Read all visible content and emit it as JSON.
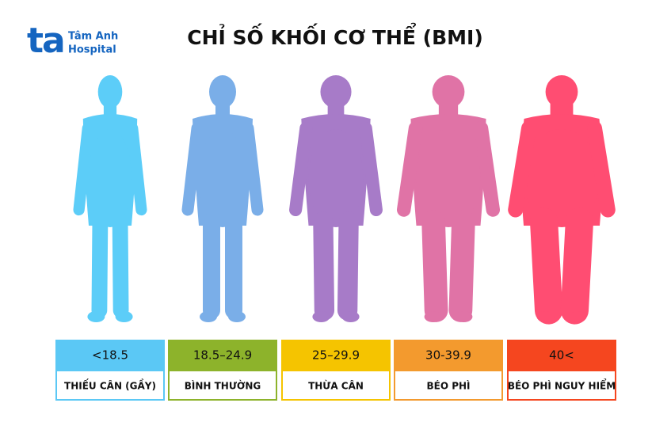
{
  "logo": {
    "mark": "ta",
    "line1": "Tâm Anh",
    "line2": "Hospital"
  },
  "title": "CHỈ SỐ KHỐI CƠ THỂ (BMI)",
  "categories": [
    {
      "range": "<18.5",
      "name": "THIẾU CÂN (GẦY)",
      "box_color": "#5bc8f5",
      "figure_color": "#5ccdf8"
    },
    {
      "range": "18.5–24.9",
      "name": "BÌNH THƯỜNG",
      "box_color": "#8db32b",
      "figure_color": "#7aaee8"
    },
    {
      "range": "25–29.9",
      "name": "THỪA CÂN",
      "box_color": "#f5c400",
      "figure_color": "#a77bc8"
    },
    {
      "range": "30-39.9",
      "name": "BÉO PHÌ",
      "box_color": "#f39a2e",
      "figure_color": "#e073a6"
    },
    {
      "range": "40<",
      "name": "BÉO PHÌ NGUY HIỂM",
      "box_color": "#f5461f",
      "figure_color": "#ff4d72"
    }
  ]
}
